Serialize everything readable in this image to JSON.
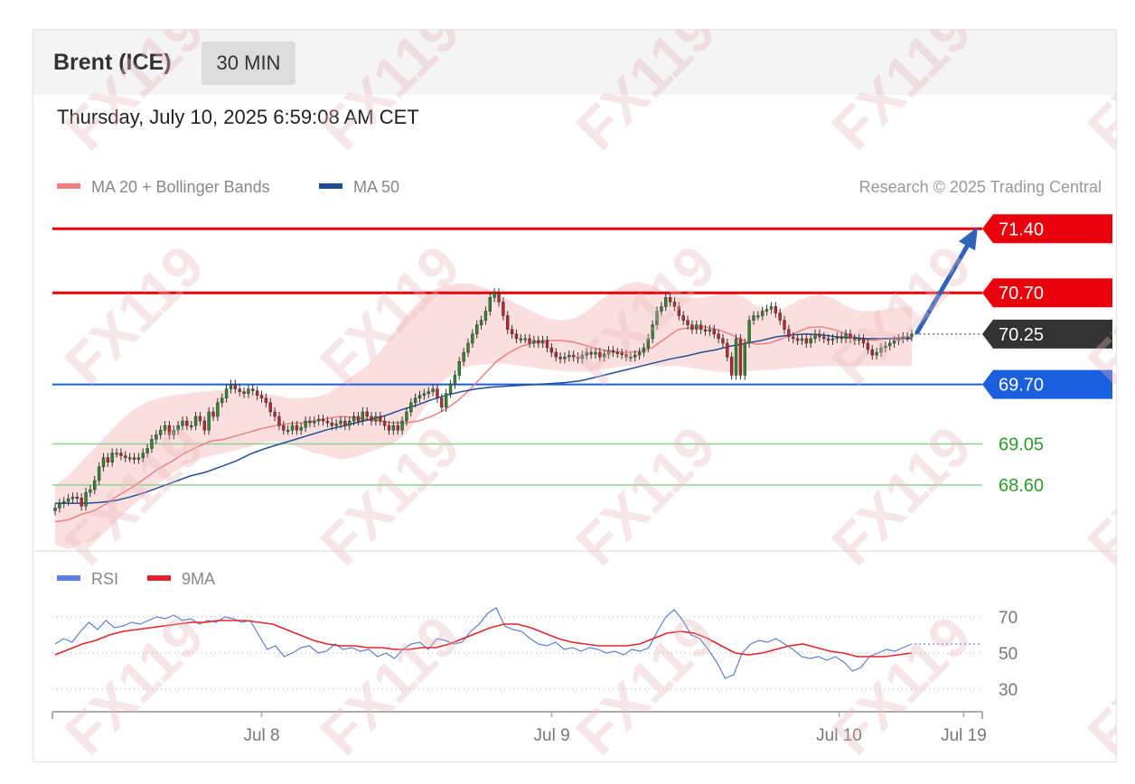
{
  "header": {
    "title": "Brent (ICE)",
    "timeframe": "30 MIN"
  },
  "datetime": "Thursday, July 10, 2025 6:59:08 AM CET",
  "legend": [
    {
      "label": "MA 20 + Bollinger Bands",
      "color": "#f08080"
    },
    {
      "label": "MA 50",
      "color": "#1f4e9a"
    }
  ],
  "copyright": "Research © 2025 Trading Central",
  "rsi_legend": [
    {
      "label": "RSI",
      "color": "#5b7fe0"
    },
    {
      "label": "9MA",
      "color": "#e8242a"
    }
  ],
  "watermark": "FX119",
  "chart_data": {
    "type": "candlestick",
    "price_ylim": [
      67.9,
      71.6
    ],
    "levels": [
      {
        "value": 71.4,
        "label": "71.40",
        "kind": "resistance",
        "color": "#e8000b"
      },
      {
        "value": 70.7,
        "label": "70.70",
        "kind": "resistance",
        "color": "#e8000b"
      },
      {
        "value": 70.25,
        "label": "70.25",
        "kind": "last",
        "color": "#333333"
      },
      {
        "value": 69.7,
        "label": "69.70",
        "kind": "pivot",
        "color": "#1a5fe0"
      },
      {
        "value": 69.05,
        "label": "69.05",
        "kind": "support",
        "color": "#2a9d2a"
      },
      {
        "value": 68.6,
        "label": "68.60",
        "kind": "support",
        "color": "#2a9d2a"
      }
    ],
    "target_arrow": {
      "from": 70.25,
      "to": 71.4
    },
    "price_close": [
      68.35,
      68.4,
      68.42,
      68.45,
      68.47,
      68.46,
      68.37,
      68.52,
      68.55,
      68.65,
      68.8,
      68.9,
      68.85,
      68.95,
      68.95,
      68.92,
      68.9,
      68.9,
      68.88,
      68.9,
      68.95,
      69.0,
      69.1,
      69.15,
      69.2,
      69.25,
      69.15,
      69.2,
      69.25,
      69.3,
      69.25,
      69.25,
      69.35,
      69.3,
      69.2,
      69.4,
      69.35,
      69.5,
      69.55,
      69.65,
      69.7,
      69.65,
      69.62,
      69.6,
      69.65,
      69.63,
      69.58,
      69.55,
      69.5,
      69.4,
      69.35,
      69.25,
      69.2,
      69.2,
      69.25,
      69.2,
      69.23,
      69.3,
      69.28,
      69.3,
      69.32,
      69.3,
      69.28,
      69.25,
      69.27,
      69.3,
      69.25,
      69.3,
      69.35,
      69.3,
      69.4,
      69.35,
      69.3,
      69.35,
      69.3,
      69.25,
      69.2,
      69.25,
      69.2,
      69.3,
      69.4,
      69.5,
      69.55,
      69.58,
      69.6,
      69.62,
      69.65,
      69.55,
      69.45,
      69.6,
      69.7,
      69.8,
      69.95,
      70.05,
      70.15,
      70.25,
      70.35,
      70.4,
      70.5,
      70.65,
      70.7,
      70.6,
      70.45,
      70.3,
      70.25,
      70.2,
      70.2,
      70.2,
      70.15,
      70.18,
      70.15,
      70.18,
      70.1,
      70.05,
      70.0,
      69.98,
      70.0,
      70.02,
      70.0,
      69.98,
      70.02,
      70.05,
      70.03,
      70.05,
      70.0,
      70.03,
      70.07,
      70.05,
      70.04,
      70.03,
      70.0,
      70.0,
      70.02,
      70.05,
      70.1,
      70.2,
      70.35,
      70.5,
      70.55,
      70.65,
      70.6,
      70.55,
      70.45,
      70.4,
      70.35,
      70.3,
      70.35,
      70.3,
      70.28,
      70.3,
      70.25,
      70.2,
      70.15,
      70.0,
      69.8,
      70.2,
      69.8,
      70.15,
      70.4,
      70.45,
      70.45,
      70.5,
      70.52,
      70.55,
      70.48,
      70.4,
      70.3,
      70.22,
      70.2,
      70.18,
      70.2,
      70.15,
      70.2,
      70.25,
      70.22,
      70.2,
      70.18,
      70.2,
      70.22,
      70.2,
      70.25,
      70.2,
      70.18,
      70.2,
      70.15,
      70.08,
      70.02,
      70.05,
      70.1,
      70.12,
      70.15,
      70.18,
      70.2,
      70.22,
      70.22,
      70.25
    ],
    "ma20": [
      68.2,
      68.22,
      68.28,
      68.32,
      68.4,
      68.5,
      68.58,
      68.68,
      68.78,
      68.86,
      68.95,
      69.02,
      69.08,
      69.1,
      69.14,
      69.18,
      69.22,
      69.25,
      69.27,
      69.28,
      69.3,
      69.33,
      69.35,
      69.34,
      69.32,
      69.3,
      69.28,
      69.28,
      69.3,
      69.35,
      69.42,
      69.52,
      69.65,
      69.8,
      69.95,
      70.05,
      70.12,
      70.16,
      70.18,
      70.18,
      70.16,
      70.12,
      70.08,
      70.06,
      70.05,
      70.06,
      70.1,
      70.2,
      70.3,
      70.32,
      70.33,
      70.3,
      70.25,
      70.18,
      70.14,
      70.15,
      70.2,
      70.26,
      70.32,
      70.33,
      70.3,
      70.25,
      70.2,
      70.18,
      70.2,
      70.21,
      70.22
    ],
    "bb_upper": [
      68.6,
      68.7,
      68.85,
      69.0,
      69.15,
      69.3,
      69.42,
      69.5,
      69.55,
      69.58,
      69.6,
      69.62,
      69.63,
      69.64,
      69.64,
      69.62,
      69.6,
      69.58,
      69.55,
      69.55,
      69.56,
      69.6,
      69.7,
      69.8,
      69.9,
      70.05,
      70.25,
      70.45,
      70.6,
      70.72,
      70.78,
      70.8,
      70.8,
      70.76,
      70.7,
      70.62,
      70.55,
      70.48,
      70.42,
      70.4,
      70.42,
      70.5,
      70.62,
      70.72,
      70.8,
      70.82,
      70.78,
      70.7,
      70.65,
      70.64,
      70.65,
      70.68,
      70.7,
      70.66,
      70.56,
      70.5,
      70.52,
      70.6,
      70.66,
      70.68,
      70.64,
      70.55,
      70.5,
      70.5,
      70.52,
      70.54,
      70.55
    ],
    "bb_lower": [
      67.95,
      67.9,
      67.95,
      68.0,
      68.1,
      68.25,
      68.38,
      68.5,
      68.62,
      68.72,
      68.82,
      68.88,
      68.92,
      68.95,
      68.98,
      69.02,
      69.06,
      69.08,
      69.05,
      69.0,
      68.95,
      68.92,
      68.88,
      68.9,
      68.95,
      69.0,
      69.05,
      69.15,
      69.35,
      69.55,
      69.75,
      69.85,
      69.9,
      69.92,
      69.93,
      69.92,
      69.9,
      69.88,
      69.86,
      69.85,
      69.84,
      69.84,
      69.86,
      69.88,
      69.9,
      69.9,
      69.9,
      69.9,
      69.9,
      69.88,
      69.86,
      69.84,
      69.83,
      69.84,
      69.85,
      69.86,
      69.87,
      69.88,
      69.89,
      69.9,
      69.9,
      69.9,
      69.9,
      69.9,
      69.9,
      69.9,
      69.9
    ],
    "ma50": [
      68.4,
      68.4,
      68.4,
      68.41,
      68.43,
      68.47,
      68.52,
      68.58,
      68.64,
      68.7,
      68.74,
      68.8,
      68.86,
      68.94,
      69.0,
      69.05,
      69.1,
      69.15,
      69.2,
      69.24,
      69.28,
      69.32,
      69.36,
      69.42,
      69.47,
      69.53,
      69.58,
      69.62,
      69.65,
      69.67,
      69.68,
      69.69,
      69.7,
      69.71,
      69.72,
      69.74,
      69.78,
      69.82,
      69.86,
      69.9,
      69.94,
      69.98,
      70.01,
      70.05,
      70.08,
      70.12,
      70.15,
      70.18,
      70.22,
      70.24,
      70.25,
      70.24,
      70.22,
      70.21,
      70.2,
      70.2,
      70.2,
      70.2
    ],
    "rsi_ylim": [
      20,
      80
    ],
    "rsi_ticks": [
      70,
      50,
      30
    ],
    "rsi": [
      55,
      58,
      56,
      62,
      67,
      63,
      68,
      64,
      65,
      67,
      66,
      68,
      70,
      69,
      71,
      68,
      69,
      66,
      68,
      67,
      70,
      69,
      67,
      68,
      60,
      52,
      54,
      48,
      50,
      53,
      54,
      50,
      51,
      55,
      52,
      53,
      51,
      52,
      48,
      50,
      47,
      52,
      55,
      56,
      52,
      58,
      57,
      55,
      56,
      62,
      66,
      72,
      75,
      65,
      63,
      62,
      58,
      55,
      54,
      56,
      52,
      53,
      51,
      53,
      52,
      50,
      51,
      49,
      52,
      51,
      53,
      62,
      70,
      74,
      68,
      60,
      58,
      52,
      45,
      36,
      38,
      50,
      55,
      57,
      56,
      58,
      55,
      52,
      48,
      47,
      48,
      46,
      48,
      45,
      40,
      42,
      48,
      50,
      52,
      51,
      53,
      55
    ],
    "rsi_ma": [
      49,
      52,
      55,
      57,
      60,
      62,
      63,
      64,
      65,
      66,
      67,
      67,
      68,
      68,
      68,
      67,
      66,
      63,
      60,
      57,
      55,
      54,
      54,
      53,
      53,
      52,
      52,
      53,
      53,
      55,
      58,
      61,
      64,
      66,
      66,
      64,
      61,
      58,
      56,
      55,
      54,
      54,
      54,
      55,
      58,
      61,
      62,
      61,
      58,
      54,
      50,
      49,
      50,
      52,
      54,
      55,
      53,
      51,
      50,
      48,
      48,
      48,
      49,
      50
    ],
    "x_ticks": [
      {
        "label": "Jul 8",
        "pos": 0.225
      },
      {
        "label": "Jul 9",
        "pos": 0.537
      },
      {
        "label": "Jul 10",
        "pos": 0.846
      },
      {
        "label": "Jul 19",
        "pos": 0.98
      }
    ]
  }
}
